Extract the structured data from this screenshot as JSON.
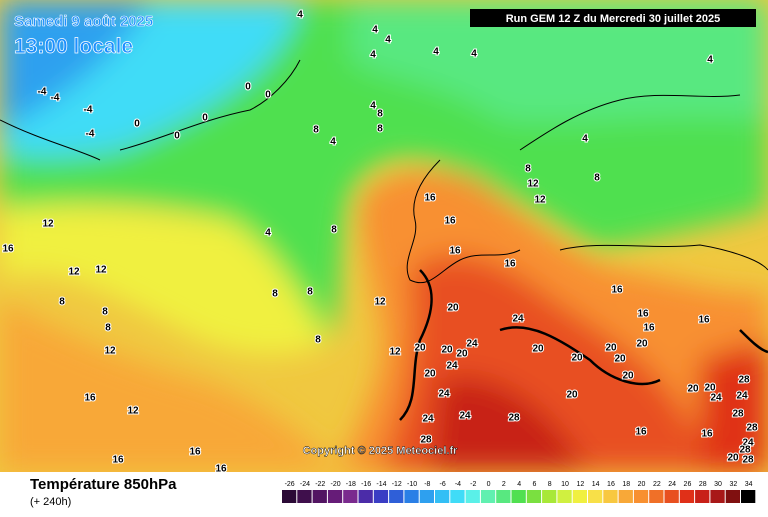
{
  "header": {
    "title": "Samedi 9 août 2025",
    "subtitle": "13:00 locale",
    "run": "Run GEM 12 Z du Mercredi 30 juillet 2025"
  },
  "copyright": "Copyright © 2025 Meteociel.fr",
  "footer": {
    "variable": "Température 850hPa",
    "lead": "(+ 240h)"
  },
  "scale": {
    "values": [
      -26,
      -24,
      -22,
      -20,
      -18,
      -16,
      -14,
      -12,
      -10,
      -8,
      -6,
      -4,
      -2,
      0,
      2,
      4,
      6,
      8,
      10,
      12,
      14,
      16,
      18,
      20,
      22,
      24,
      26,
      28,
      30,
      32,
      34
    ],
    "colors": [
      "#2b0a36",
      "#3f0f4c",
      "#521462",
      "#661c78",
      "#7a2a8e",
      "#4b2ca8",
      "#3a3dc4",
      "#2f5fd8",
      "#2a7fe6",
      "#2ea0ef",
      "#33bff5",
      "#40dcf7",
      "#5af0e8",
      "#60f0b0",
      "#58e880",
      "#50e050",
      "#7ae040",
      "#a8e838",
      "#d0f040",
      "#f0f040",
      "#f8e048",
      "#f8c840",
      "#f8a838",
      "#f89030",
      "#f07028",
      "#e85020",
      "#e03018",
      "#c82018",
      "#a81818",
      "#801010",
      "#000000"
    ]
  },
  "contour_labels": [
    4,
    4,
    4,
    4,
    4,
    4,
    4,
    -4,
    -4,
    -4,
    -4,
    0,
    0,
    0,
    0,
    0,
    4,
    8,
    8,
    8,
    4,
    4,
    8,
    8,
    12,
    12,
    16,
    16,
    16,
    16,
    12,
    16,
    12,
    12,
    8,
    4,
    8,
    8,
    8,
    8,
    12,
    8,
    8,
    12,
    16,
    16,
    16,
    16,
    20,
    24,
    24,
    20,
    20,
    20,
    12,
    20,
    20,
    20,
    20,
    20,
    24,
    20,
    20,
    20,
    20,
    24,
    28,
    24,
    24,
    20,
    16,
    12,
    24,
    24,
    28,
    28,
    28,
    16,
    16,
    28,
    24,
    28,
    16,
    16,
    16,
    20,
    28
  ]
}
